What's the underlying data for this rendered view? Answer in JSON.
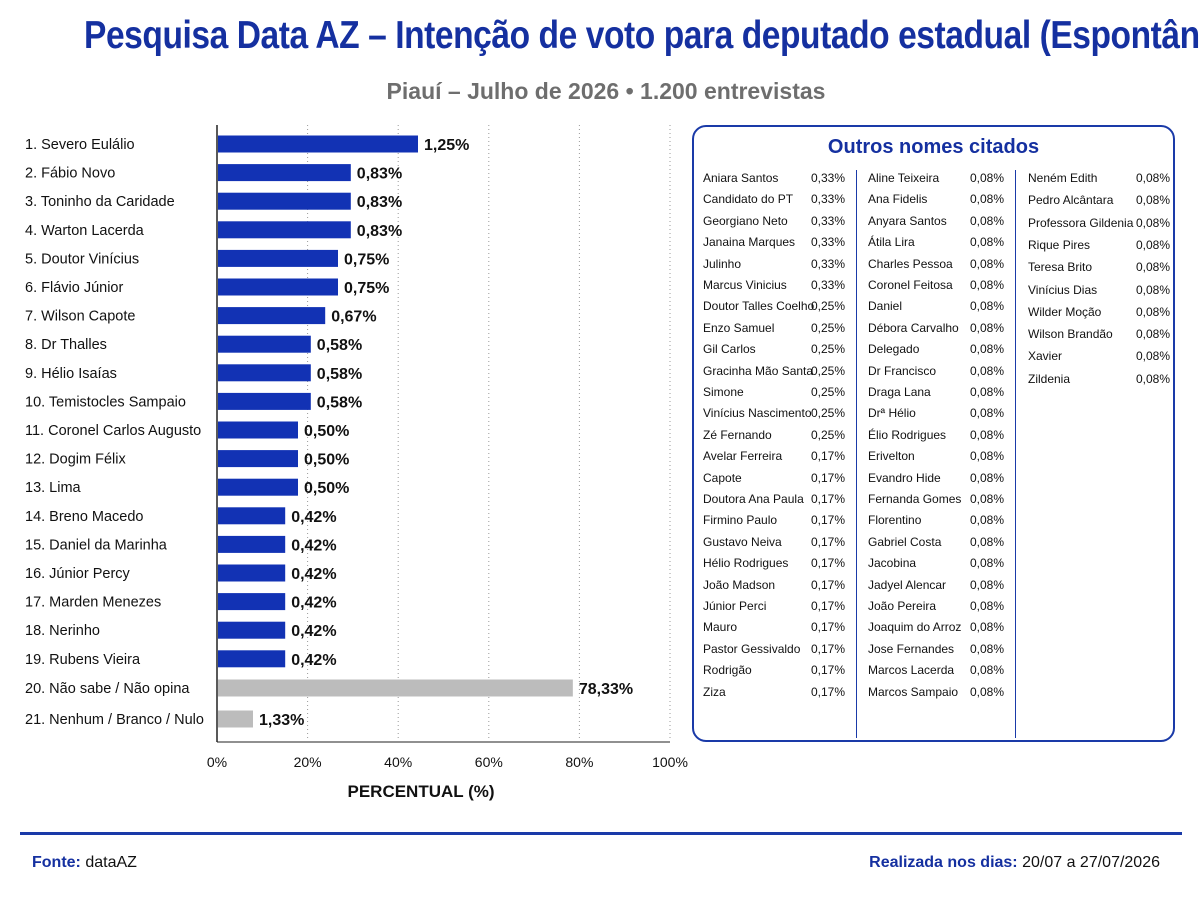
{
  "title": "Pesquisa Data AZ – Intenção de voto para deputado estadual (Espontânea)",
  "subtitle": "Piauí – Julho de 2026  •  1.200 entrevistas",
  "chart_data": {
    "type": "bar",
    "orientation": "horizontal",
    "xlabel": "PERCENTUAL (%)",
    "xlim": [
      0,
      100
    ],
    "xticks": [
      "0%",
      "20%",
      "40%",
      "60%",
      "80%",
      "100%"
    ],
    "grid": "vertical dotted",
    "colors": {
      "candidate": "#1232b4",
      "other": "#bcbcbc"
    },
    "categories": [
      "1. Severo Eulálio",
      "2. Fábio Novo",
      "3. Toninho da Caridade",
      "4. Warton Lacerda",
      "5. Doutor Vinícius",
      "6. Flávio Júnior",
      "7. Wilson Capote",
      "8. Dr Thalles",
      "9. Hélio Isaías",
      "10. Temistocles Sampaio",
      "11. Coronel Carlos Augusto",
      "12. Dogim Félix",
      "13. Lima",
      "14. Breno Macedo",
      "15. Daniel da Marinha",
      "16. Júnior Percy",
      "17. Marden Menezes",
      "18. Nerinho",
      "19. Rubens Vieira",
      "20. Não sabe / Não opina",
      "21. Nenhum / Branco / Nulo"
    ],
    "values": [
      1.25,
      0.83,
      0.83,
      0.83,
      0.75,
      0.75,
      0.67,
      0.58,
      0.58,
      0.58,
      0.5,
      0.5,
      0.5,
      0.42,
      0.42,
      0.42,
      0.42,
      0.42,
      0.42,
      78.33,
      1.33
    ],
    "value_labels": [
      "1,25%",
      "0,83%",
      "0,83%",
      "0,83%",
      "0,75%",
      "0,75%",
      "0,67%",
      "0,58%",
      "0,58%",
      "0,58%",
      "0,50%",
      "0,50%",
      "0,50%",
      "0,42%",
      "0,42%",
      "0,42%",
      "0,42%",
      "0,42%",
      "0,42%",
      "78,33%",
      "1,33%"
    ]
  },
  "others": {
    "title": "Outros nomes citados",
    "columns": [
      [
        [
          "Aniara Santos",
          "0,33%"
        ],
        [
          "Candidato do PT",
          "0,33%"
        ],
        [
          "Georgiano Neto",
          "0,33%"
        ],
        [
          "Janaina Marques",
          "0,33%"
        ],
        [
          "Julinho",
          "0,33%"
        ],
        [
          "Marcus Vinicius",
          "0,33%"
        ],
        [
          "Doutor Talles Coelho",
          "0,25%"
        ],
        [
          "Enzo Samuel",
          "0,25%"
        ],
        [
          "Gil Carlos",
          "0,25%"
        ],
        [
          "Gracinha Mão Santa",
          "0,25%"
        ],
        [
          "Simone",
          "0,25%"
        ],
        [
          "Vinícius Nascimento",
          "0,25%"
        ],
        [
          "Zé Fernando",
          "0,25%"
        ],
        [
          "Avelar Ferreira",
          "0,17%"
        ],
        [
          "Capote",
          "0,17%"
        ],
        [
          "Doutora Ana Paula",
          "0,17%"
        ],
        [
          "Firmino Paulo",
          "0,17%"
        ],
        [
          "Gustavo Neiva",
          "0,17%"
        ],
        [
          "Hélio Rodrigues",
          "0,17%"
        ],
        [
          "João Madson",
          "0,17%"
        ],
        [
          "Júnior Perci",
          "0,17%"
        ],
        [
          "Mauro",
          "0,17%"
        ],
        [
          "Pastor Gessivaldo",
          "0,17%"
        ],
        [
          "Rodrigão",
          "0,17%"
        ],
        [
          "Ziza",
          "0,17%"
        ]
      ],
      [
        [
          "Aline Teixeira",
          "0,08%"
        ],
        [
          "Ana Fidelis",
          "0,08%"
        ],
        [
          "Anyara Santos",
          "0,08%"
        ],
        [
          "Átila Lira",
          "0,08%"
        ],
        [
          "Charles Pessoa",
          "0,08%"
        ],
        [
          "Coronel Feitosa",
          "0,08%"
        ],
        [
          "Daniel",
          "0,08%"
        ],
        [
          "Débora Carvalho",
          "0,08%"
        ],
        [
          "Delegado",
          "0,08%"
        ],
        [
          "Dr Francisco",
          "0,08%"
        ],
        [
          "Draga Lana",
          "0,08%"
        ],
        [
          "Drª Hélio",
          "0,08%"
        ],
        [
          "Élio Rodrigues",
          "0,08%"
        ],
        [
          "Erivelton",
          "0,08%"
        ],
        [
          "Evandro Hide",
          "0,08%"
        ],
        [
          "Fernanda Gomes",
          "0,08%"
        ],
        [
          "Florentino",
          "0,08%"
        ],
        [
          "Gabriel Costa",
          "0,08%"
        ],
        [
          "Jacobina",
          "0,08%"
        ],
        [
          "Jadyel Alencar",
          "0,08%"
        ],
        [
          "João Pereira",
          "0,08%"
        ],
        [
          "Joaquim do Arroz",
          "0,08%"
        ],
        [
          "Jose Fernandes",
          "0,08%"
        ],
        [
          "Marcos Lacerda",
          "0,08%"
        ],
        [
          "Marcos Sampaio",
          "0,08%"
        ]
      ],
      [
        [
          "Neném Edith",
          "0,08%"
        ],
        [
          "Pedro Alcântara",
          "0,08%"
        ],
        [
          "Professora Gildenia",
          "0,08%"
        ],
        [
          "Rique Pires",
          "0,08%"
        ],
        [
          "Teresa Brito",
          "0,08%"
        ],
        [
          "Vinícius Dias",
          "0,08%"
        ],
        [
          "Wilder Moção",
          "0,08%"
        ],
        [
          "Wilson Brandão",
          "0,08%"
        ],
        [
          "Xavier",
          "0,08%"
        ],
        [
          "Zildenia",
          "0,08%"
        ]
      ]
    ]
  },
  "footer": {
    "fonte_label": "Fonte:",
    "fonte_value": "dataAZ",
    "realizada_label": "Realizada nos dias:",
    "realizada_value": "20/07 a 27/07/2026"
  }
}
